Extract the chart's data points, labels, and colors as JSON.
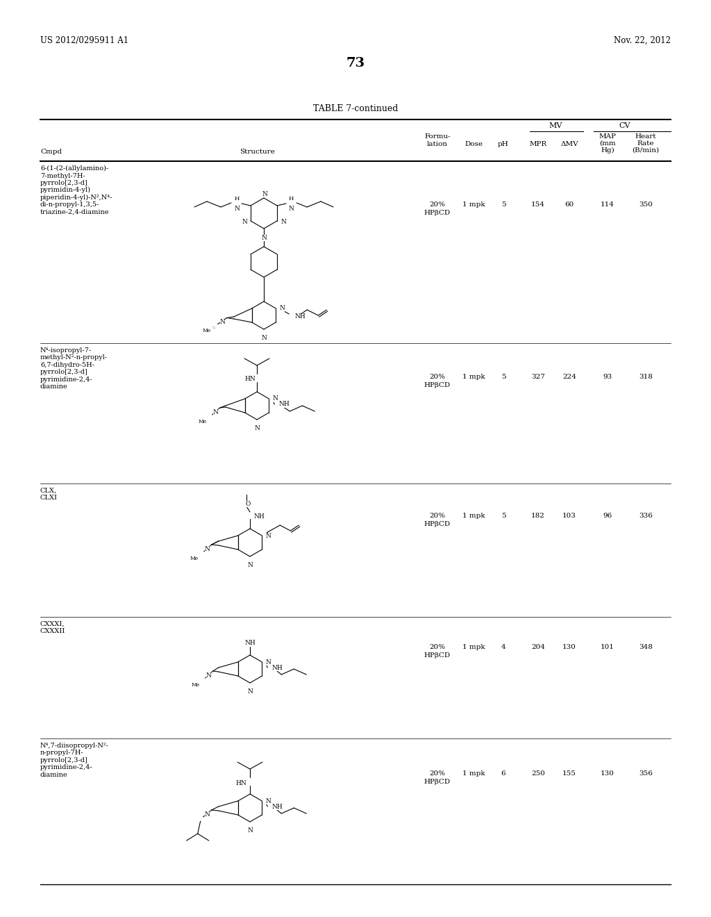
{
  "page_header_left": "US 2012/0295911 A1",
  "page_header_right": "Nov. 22, 2012",
  "page_number": "73",
  "table_title": "TABLE 7-continued",
  "rows": [
    {
      "cmpd": "6-(1-(2-(allylamino)-\n7-methyl-7H-\npyrrolo[2,3-d]\npyrimidin-4-yl)\npiperidin-4-yl)-N²,N⁴-\ndi-n-propyl-1,3,5-\ntriazine-2,4-diamine",
      "formulation": "20%\nHPβCD",
      "dose": "1 mpk",
      "ph": "5",
      "mpr": "154",
      "amv": "60",
      "map": "114",
      "heart_rate": "350"
    },
    {
      "cmpd": "N⁴-isopropyl-7-\nmethyl-N²-n-propyl-\n6,7-dihydro-5H-\npyrrolo[2,3-d]\npyrimidine-2,4-\ndiamine",
      "formulation": "20%\nHPβCD",
      "dose": "1 mpk",
      "ph": "5",
      "mpr": "327",
      "amv": "224",
      "map": "93",
      "heart_rate": "318"
    },
    {
      "cmpd": "CLX,\nCLXI",
      "formulation": "20%\nHPβCD",
      "dose": "1 mpk",
      "ph": "5",
      "mpr": "182",
      "amv": "103",
      "map": "96",
      "heart_rate": "336"
    },
    {
      "cmpd": "CXXXI,\nCXXXII",
      "formulation": "20%\nHPβCD",
      "dose": "1 mpk",
      "ph": "4",
      "mpr": "204",
      "amv": "130",
      "map": "101",
      "heart_rate": "348"
    },
    {
      "cmpd": "N⁴,7-diisopropyl-N²-\nn-propyl-7H-\npyrrolo[2,3-d]\npyrimidine-2,4-\ndiamine",
      "formulation": "20%\nHPβCD",
      "dose": "1 mpk",
      "ph": "6",
      "mpr": "250",
      "amv": "155",
      "map": "130",
      "heart_rate": "356"
    }
  ],
  "background_color": "#ffffff",
  "text_color": "#000000"
}
